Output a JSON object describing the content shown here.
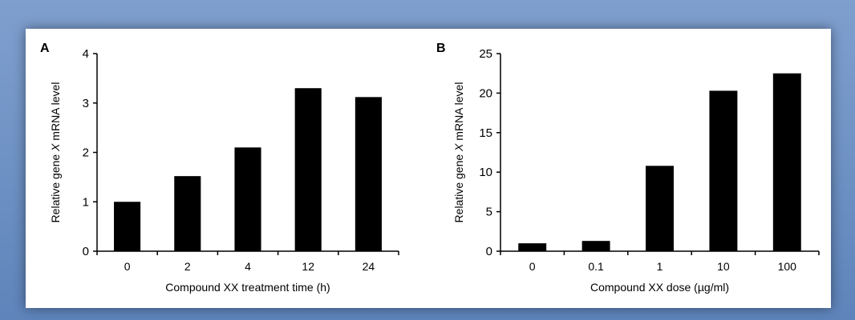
{
  "chart_data": [
    {
      "panel_label": "A",
      "type": "bar",
      "categories": [
        "0",
        "2",
        "4",
        "12",
        "24"
      ],
      "values": [
        1.0,
        1.52,
        2.1,
        3.3,
        3.12
      ],
      "ylabel_parts": [
        "Relative gene ",
        "X",
        " mRNA level"
      ],
      "xlabel": "Compound XX treatment time (h)",
      "ylim": [
        0,
        4
      ],
      "yticks": [
        0,
        1,
        2,
        3,
        4
      ],
      "bar_color": "#000000",
      "grid": false
    },
    {
      "panel_label": "B",
      "type": "bar",
      "categories": [
        "0",
        "0.1",
        "1",
        "10",
        "100"
      ],
      "values": [
        1.0,
        1.3,
        10.8,
        20.3,
        22.5
      ],
      "ylabel_parts": [
        "Relative gene ",
        "X",
        " mRNA level"
      ],
      "xlabel": "Compound XX dose (µg/ml)",
      "ylim": [
        0,
        25
      ],
      "yticks": [
        0,
        5,
        10,
        15,
        20,
        25
      ],
      "bar_color": "#000000",
      "grid": false
    }
  ]
}
